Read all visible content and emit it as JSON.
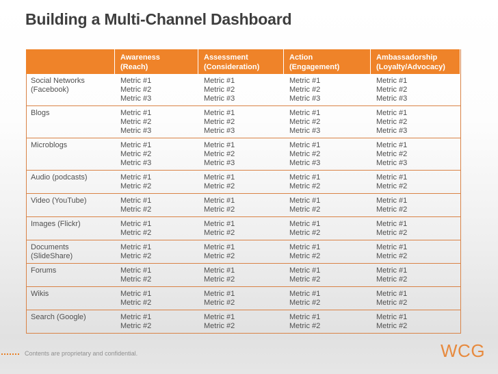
{
  "title": "Building a Multi-Channel Dashboard",
  "colors": {
    "header_bg": "#EF8329",
    "header_text": "#FFFFFF",
    "table_border": "#D98245",
    "title_text": "#3E3E3E",
    "body_text": "#4F4F4F",
    "footer_text": "#8F8F8F",
    "accent_orange": "#E78A3E"
  },
  "table": {
    "stage_count": 4,
    "header": [
      {
        "id": "channel",
        "lines": []
      },
      {
        "id": "awareness",
        "lines": [
          "Awareness",
          "(Reach)"
        ]
      },
      {
        "id": "assessment",
        "lines": [
          "Assessment",
          "(Consideration)"
        ]
      },
      {
        "id": "action",
        "lines": [
          "Action",
          "(Engagement)"
        ]
      },
      {
        "id": "ambassadorship",
        "lines": [
          "Ambassadorship",
          "(Loyalty/Advocacy)"
        ]
      }
    ],
    "rows": [
      {
        "channel_lines": [
          "Social Networks",
          "(Facebook)"
        ],
        "metrics": [
          "Metric #1",
          "Metric #2",
          "Metric #3"
        ]
      },
      {
        "channel_lines": [
          "Blogs"
        ],
        "metrics": [
          "Metric #1",
          "Metric #2",
          "Metric #3"
        ]
      },
      {
        "channel_lines": [
          "Microblogs"
        ],
        "metrics": [
          "Metric #1",
          "Metric #2",
          "Metric #3"
        ]
      },
      {
        "channel_lines": [
          "Audio (podcasts)"
        ],
        "metrics": [
          "Metric #1",
          "Metric #2"
        ]
      },
      {
        "channel_lines": [
          "Video (YouTube)"
        ],
        "metrics": [
          "Metric #1",
          "Metric #2"
        ]
      },
      {
        "channel_lines": [
          "Images (Flickr)"
        ],
        "metrics": [
          "Metric #1",
          "Metric #2"
        ]
      },
      {
        "channel_lines": [
          "Documents",
          "(SlideShare)"
        ],
        "metrics": [
          "Metric #1",
          "Metric #2"
        ]
      },
      {
        "channel_lines": [
          "Forums"
        ],
        "metrics": [
          "Metric #1",
          "Metric #2"
        ]
      },
      {
        "channel_lines": [
          "Wikis"
        ],
        "metrics": [
          "Metric #1",
          "Metric #2"
        ]
      },
      {
        "channel_lines": [
          "Search (Google)"
        ],
        "metrics": [
          "Metric #1",
          "Metric #2"
        ]
      }
    ]
  },
  "footer": {
    "note": "Contents are proprietary and confidential.",
    "logo": "WCG"
  }
}
